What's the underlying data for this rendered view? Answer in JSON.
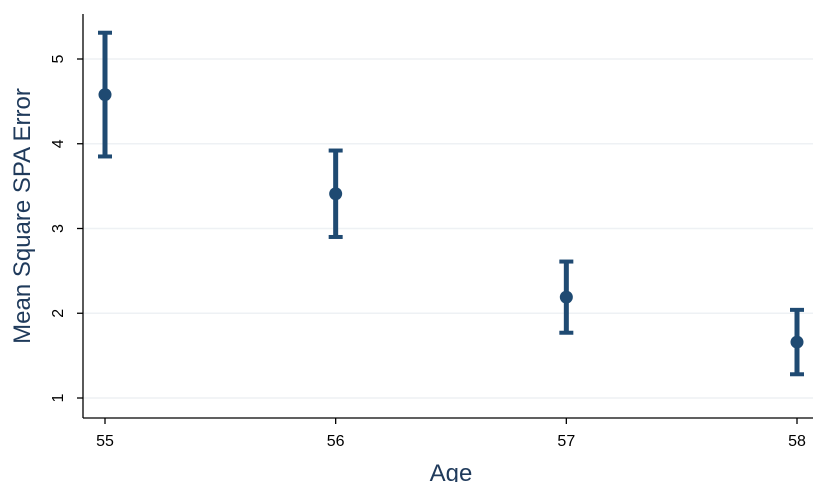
{
  "chart_data": {
    "type": "scatter",
    "title": "",
    "xlabel": "Age",
    "ylabel": "Mean Square SPA Error",
    "xlim": [
      55,
      58
    ],
    "ylim": [
      0.85,
      5.55
    ],
    "x_ticks": [
      55,
      56,
      57,
      58
    ],
    "y_ticks": [
      1,
      2,
      3,
      4,
      5
    ],
    "grid": "horizontal",
    "error_bars": true,
    "series": [
      {
        "points": [
          {
            "x": 55,
            "y": 4.58,
            "lower": 3.85,
            "upper": 5.31
          },
          {
            "x": 56,
            "y": 3.41,
            "lower": 2.9,
            "upper": 3.92
          },
          {
            "x": 57,
            "y": 2.19,
            "lower": 1.77,
            "upper": 2.61
          },
          {
            "x": 58,
            "y": 1.66,
            "lower": 1.28,
            "upper": 2.04
          }
        ]
      }
    ],
    "colors": {
      "marker": "#1f4a72",
      "axis_title": "#1f3a5b",
      "grid": "#eef1f4",
      "axis": "#000000"
    }
  }
}
